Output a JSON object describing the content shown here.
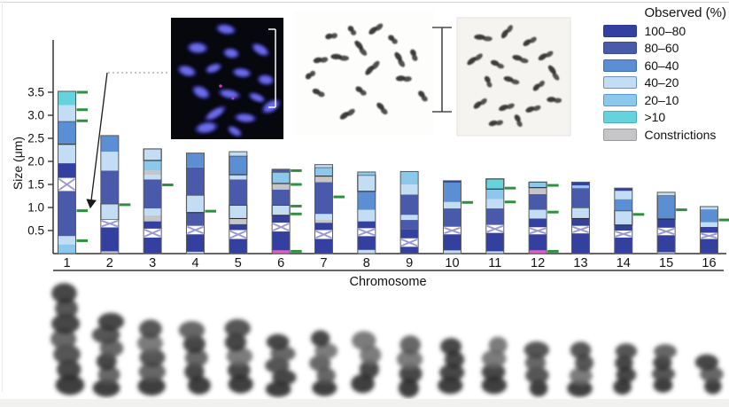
{
  "chart_data": {
    "type": "stacked-bar",
    "title": "",
    "xlabel": "Chromosome",
    "ylabel": "Size (μm)",
    "ylim": [
      0,
      3.8
    ],
    "ytick_labels": [
      "0.5",
      "1.0",
      "1.5",
      "2.0",
      "2.5",
      "3.0",
      "3.5"
    ],
    "x_categories": [
      "1",
      "2",
      "3",
      "4",
      "5",
      "6",
      "7",
      "8",
      "9",
      "10",
      "11",
      "12",
      "13",
      "14",
      "15",
      "16"
    ],
    "legend": {
      "title": "Observed (%)",
      "position": "top-right",
      "entries": [
        {
          "label": "100–80",
          "color": "#3340a0",
          "border": "#2c3790"
        },
        {
          "label": "80–60",
          "color": "#4a5aab",
          "border": "#3c4a9c"
        },
        {
          "label": "60–40",
          "color": "#5b8ed2",
          "border": "#3f6fb8"
        },
        {
          "label": "40–20",
          "color": "#c3ddf4",
          "border": "#6f8fc0"
        },
        {
          "label": "20–10",
          "color": "#8cc8ec",
          "border": "#5a9ac8"
        },
        {
          "label": ">10",
          "color": "#66d2dc",
          "border": "#48b0ba"
        },
        {
          "label": "Constrictions",
          "color": "#c6c6c8",
          "border": "#9a9a9a"
        }
      ]
    },
    "colors": {
      "100-80": "#3340a0",
      "80-60": "#4a5aab",
      "60-40": "#5b8ed2",
      "40-20": "#c3ddf4",
      "20-10": "#8cc8ec",
      ">10": "#66d2dc",
      "constriction": "#c6c6c8",
      "pink": "#e35bc8"
    },
    "marker_color": "#2f8f3f",
    "centromere_cross_color": "#9898d8",
    "chromosomes": [
      {
        "name": "1",
        "total": 3.52,
        "centromere": [
          1.36,
          1.64
        ],
        "segments": [
          [
            0,
            0.2,
            "20-10"
          ],
          [
            0.2,
            0.38,
            "40-20"
          ],
          [
            0.38,
            1.36,
            "80-60"
          ],
          [
            1.64,
            1.96,
            "100-80"
          ],
          [
            1.96,
            2.37,
            "40-20"
          ],
          [
            2.37,
            2.87,
            "60-40",
            1
          ],
          [
            2.87,
            3.22,
            "40-20"
          ],
          [
            3.22,
            3.52,
            ">10"
          ]
        ],
        "markers": [
          3.5,
          3.12,
          2.88,
          0.93,
          0.28
        ]
      },
      {
        "name": "2",
        "total": 2.56,
        "centromere": [
          0.57,
          0.73
        ],
        "segments": [
          [
            0,
            0.05,
            "constriction"
          ],
          [
            0.05,
            0.57,
            "100-80"
          ],
          [
            0.73,
            1.08,
            "40-20",
            1
          ],
          [
            1.08,
            1.8,
            "80-60"
          ],
          [
            1.8,
            2.21,
            "40-20"
          ],
          [
            2.21,
            2.56,
            "60-40"
          ]
        ],
        "markers": [
          1.06
        ]
      },
      {
        "name": "3",
        "total": 2.27,
        "centromere": [
          0.35,
          0.54
        ],
        "segments": [
          [
            0,
            0.35,
            "100-80"
          ],
          [
            0.54,
            0.7,
            "100-80"
          ],
          [
            0.7,
            0.83,
            "constriction"
          ],
          [
            0.83,
            0.98,
            "40-20"
          ],
          [
            0.98,
            1.61,
            "80-60"
          ],
          [
            1.61,
            1.71,
            "40-20"
          ],
          [
            1.71,
            1.8,
            "constriction"
          ],
          [
            1.8,
            2.02,
            "20-10"
          ],
          [
            2.02,
            2.27,
            "40-20",
            1
          ]
        ],
        "markers": [
          1.49
        ]
      },
      {
        "name": "4",
        "total": 2.18,
        "centromere": [
          0.42,
          0.6
        ],
        "segments": [
          [
            0,
            0.04,
            "40-20"
          ],
          [
            0.04,
            0.42,
            "100-80"
          ],
          [
            0.6,
            0.89,
            "80-60"
          ],
          [
            0.89,
            1.27,
            "40-20",
            1
          ],
          [
            1.27,
            1.87,
            "80-60"
          ],
          [
            1.87,
            2.18,
            "60-40"
          ]
        ],
        "markers": [
          0.92
        ]
      },
      {
        "name": "5",
        "total": 2.21,
        "centromere": [
          0.32,
          0.51
        ],
        "segments": [
          [
            0,
            0.32,
            "100-80"
          ],
          [
            0.51,
            0.64,
            "100-80"
          ],
          [
            0.64,
            0.76,
            "constriction"
          ],
          [
            0.76,
            1.05,
            "40-20",
            1
          ],
          [
            1.05,
            1.61,
            "80-60"
          ],
          [
            1.61,
            1.71,
            "40-20"
          ],
          [
            1.71,
            2.12,
            "60-40",
            1
          ],
          [
            2.12,
            2.21,
            "40-20"
          ]
        ],
        "markers": []
      },
      {
        "name": "6",
        "total": 1.83,
        "centromere": [
          0.48,
          0.67
        ],
        "segments": [
          [
            0,
            0.07,
            "pink"
          ],
          [
            0.07,
            0.48,
            "100-80"
          ],
          [
            0.67,
            0.83,
            "100-80"
          ],
          [
            0.83,
            1.05,
            "40-20",
            1
          ],
          [
            1.05,
            1.39,
            "80-60"
          ],
          [
            1.39,
            1.52,
            "constriction"
          ],
          [
            1.52,
            1.77,
            "20-10",
            1
          ],
          [
            1.77,
            1.83,
            "80-60"
          ]
        ],
        "markers": [
          1.8,
          1.5,
          1.03,
          0.86,
          0.05
        ]
      },
      {
        "name": "7",
        "total": 1.93,
        "centromere": [
          0.32,
          0.51
        ],
        "segments": [
          [
            0,
            0.32,
            "100-80"
          ],
          [
            0.51,
            0.67,
            "100-80"
          ],
          [
            0.67,
            0.73,
            "constriction"
          ],
          [
            0.73,
            0.86,
            "40-20"
          ],
          [
            0.86,
            1.55,
            "80-60"
          ],
          [
            1.55,
            1.68,
            "constriction"
          ],
          [
            1.68,
            1.87,
            "20-10",
            1
          ],
          [
            1.87,
            1.93,
            "40-20"
          ]
        ],
        "markers": [
          1.23
        ]
      },
      {
        "name": "8",
        "total": 1.77,
        "centromere": [
          0.38,
          0.55
        ],
        "segments": [
          [
            0,
            0.08,
            "40-20"
          ],
          [
            0.08,
            0.38,
            "100-80"
          ],
          [
            0.55,
            0.7,
            "100-80"
          ],
          [
            0.7,
            0.95,
            "40-20"
          ],
          [
            0.95,
            1.35,
            "60-40"
          ],
          [
            1.35,
            1.7,
            "40-20",
            1
          ],
          [
            1.7,
            1.77,
            "20-10"
          ]
        ],
        "markers": []
      },
      {
        "name": "9",
        "total": 1.78,
        "centromere": [
          0.15,
          0.33
        ],
        "segments": [
          [
            0,
            0.15,
            "100-80"
          ],
          [
            0.33,
            0.52,
            "100-80"
          ],
          [
            0.52,
            0.73,
            "80-60"
          ],
          [
            0.73,
            0.84,
            "40-20"
          ],
          [
            0.84,
            1.28,
            "80-60"
          ],
          [
            1.28,
            1.5,
            "40-20"
          ],
          [
            1.5,
            1.78,
            "20-10"
          ]
        ],
        "markers": []
      },
      {
        "name": "10",
        "total": 1.58,
        "centromere": [
          0.42,
          0.58
        ],
        "segments": [
          [
            0,
            0.07,
            "40-20"
          ],
          [
            0.07,
            0.42,
            "100-80"
          ],
          [
            0.58,
            0.98,
            "80-60"
          ],
          [
            0.98,
            1.12,
            "40-20"
          ],
          [
            1.12,
            1.54,
            "60-40"
          ],
          [
            1.54,
            1.58,
            "100-80"
          ]
        ],
        "markers": [
          1.11
        ]
      },
      {
        "name": "11",
        "total": 1.62,
        "centromere": [
          0.45,
          0.62
        ],
        "segments": [
          [
            0,
            0.05,
            "40-20"
          ],
          [
            0.05,
            0.45,
            "100-80"
          ],
          [
            0.62,
            0.98,
            "80-60"
          ],
          [
            0.98,
            1.18,
            "40-20"
          ],
          [
            1.18,
            1.4,
            "20-10"
          ],
          [
            1.4,
            1.62,
            ">10",
            1
          ]
        ],
        "markers": [
          1.42,
          1.12
        ]
      },
      {
        "name": "12",
        "total": 1.55,
        "centromere": [
          0.42,
          0.57
        ],
        "segments": [
          [
            0,
            0.07,
            "pink"
          ],
          [
            0.07,
            0.42,
            "100-80"
          ],
          [
            0.57,
            0.76,
            "100-80"
          ],
          [
            0.76,
            0.95,
            "40-20"
          ],
          [
            0.95,
            1.29,
            "80-60"
          ],
          [
            1.29,
            1.43,
            "constriction"
          ],
          [
            1.43,
            1.55,
            "20-10",
            1
          ]
        ],
        "markers": [
          1.48,
          0.9,
          0.05
        ]
      },
      {
        "name": "13",
        "total": 1.55,
        "centromere": [
          0.44,
          0.6
        ],
        "segments": [
          [
            0,
            0.44,
            "100-80"
          ],
          [
            0.6,
            0.76,
            "100-80"
          ],
          [
            0.76,
            1.0,
            "40-20",
            1
          ],
          [
            1.0,
            1.42,
            "80-60"
          ],
          [
            1.42,
            1.48,
            "20-10"
          ],
          [
            1.48,
            1.55,
            "100-80"
          ]
        ],
        "markers": []
      },
      {
        "name": "14",
        "total": 1.42,
        "centromere": [
          0.35,
          0.5
        ],
        "segments": [
          [
            0,
            0.35,
            "100-80"
          ],
          [
            0.5,
            0.62,
            "100-80"
          ],
          [
            0.62,
            0.93,
            "40-20",
            1
          ],
          [
            0.93,
            1.18,
            "60-40"
          ],
          [
            1.18,
            1.36,
            "40-20"
          ],
          [
            1.36,
            1.42,
            "100-80"
          ]
        ],
        "markers": [
          0.85
        ]
      },
      {
        "name": "15",
        "total": 1.33,
        "centromere": [
          0.4,
          0.56
        ],
        "segments": [
          [
            0,
            0.03,
            "40-20"
          ],
          [
            0.03,
            0.4,
            "100-80"
          ],
          [
            0.56,
            0.75,
            "100-80"
          ],
          [
            0.75,
            1.26,
            "60-40",
            1
          ],
          [
            1.26,
            1.33,
            "40-20"
          ]
        ],
        "markers": [
          0.95
        ]
      },
      {
        "name": "16",
        "total": 1.02,
        "centromere": [
          0.32,
          0.45
        ],
        "segments": [
          [
            0,
            0.32,
            "100-80"
          ],
          [
            0.45,
            0.58,
            "100-80"
          ],
          [
            0.58,
            0.68,
            "40-20"
          ],
          [
            0.68,
            0.96,
            "60-40"
          ],
          [
            0.96,
            1.02,
            "40-20"
          ]
        ],
        "markers": [
          0.73
        ]
      }
    ]
  },
  "insets": {
    "micrographs": [
      {
        "name": "dapi-fluorescence-spread-micrograph"
      },
      {
        "name": "inverted-chromosome-spread-micrograph"
      },
      {
        "name": "chromosome-spread-micrograph"
      }
    ],
    "scale_bars_visible": 2,
    "karyotype_photo_row": {
      "name": "chromosome-photo-row",
      "count": 16
    }
  }
}
